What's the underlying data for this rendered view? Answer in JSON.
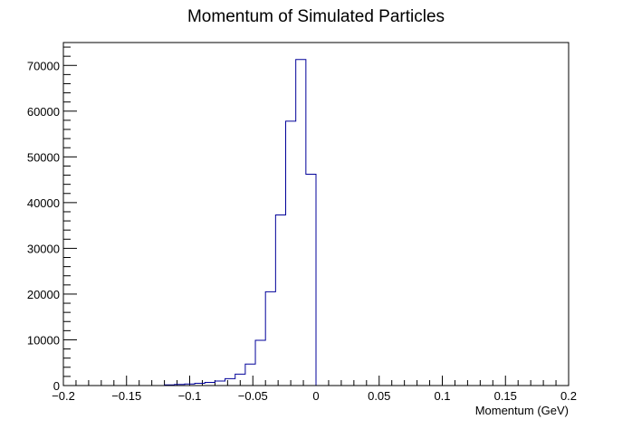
{
  "chart_data": {
    "type": "bar",
    "title": "Momentum of Simulated Particles",
    "xlabel": "Momentum (GeV)",
    "ylabel": "",
    "xlim": [
      -0.2,
      0.2
    ],
    "ylim": [
      0,
      75000
    ],
    "grid": false,
    "legend": "none",
    "bin_width": 0.008,
    "bin_left_edges": [
      -0.12,
      -0.112,
      -0.104,
      -0.096,
      -0.088,
      -0.08,
      -0.072,
      -0.064,
      -0.056,
      -0.048,
      -0.04,
      -0.032,
      -0.024,
      -0.016,
      -0.008
    ],
    "values": [
      150,
      250,
      350,
      500,
      700,
      1000,
      1500,
      2500,
      4700,
      9900,
      20500,
      37300,
      57800,
      71300,
      46200
    ],
    "x_ticks": [
      -0.2,
      -0.15,
      -0.1,
      -0.05,
      0,
      0.05,
      0.1,
      0.15,
      0.2
    ],
    "x_tick_labels": [
      "−0.2",
      "−0.15",
      "−0.1",
      "−0.05",
      "0",
      "0.05",
      "0.1",
      "0.15",
      "0.2"
    ],
    "y_ticks": [
      0,
      10000,
      20000,
      30000,
      40000,
      50000,
      60000,
      70000
    ],
    "y_tick_labels": [
      "0",
      "10000",
      "20000",
      "30000",
      "40000",
      "50000",
      "60000",
      "70000"
    ],
    "line_color": "#000099",
    "frame_color": "#000000"
  }
}
